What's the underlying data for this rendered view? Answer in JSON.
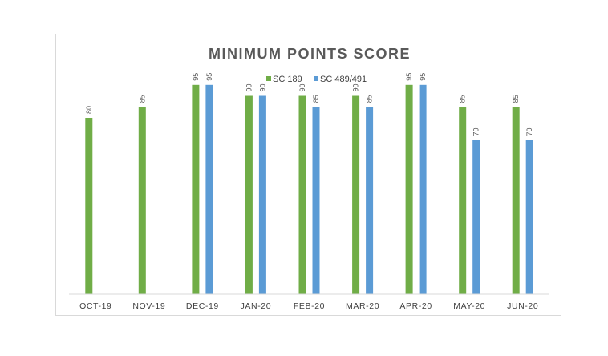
{
  "chart_data": {
    "type": "bar",
    "title": "MINIMUM POINTS SCORE",
    "categories": [
      "OCT-19",
      "NOV-19",
      "DEC-19",
      "JAN-20",
      "FEB-20",
      "MAR-20",
      "APR-20",
      "MAY-20",
      "JUN-20"
    ],
    "series": [
      {
        "name": "SC 189",
        "color": "#70ad47",
        "values": [
          80,
          85,
          95,
          90,
          90,
          90,
          95,
          85,
          85
        ]
      },
      {
        "name": "SC 489/491",
        "color": "#5b9bd5",
        "values": [
          null,
          null,
          95,
          90,
          85,
          85,
          95,
          70,
          70
        ]
      }
    ],
    "ylim": [
      0,
      100
    ],
    "legend": "top",
    "grid": false,
    "xlabel": "",
    "ylabel": ""
  }
}
